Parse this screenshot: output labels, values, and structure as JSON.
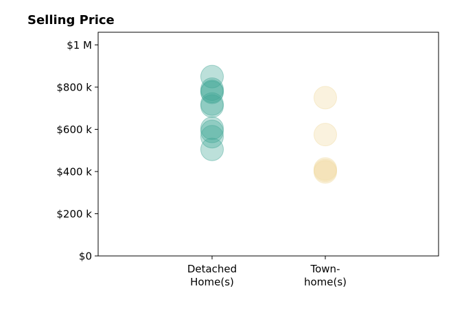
{
  "chart_data": {
    "type": "scatter",
    "title": "Selling Price",
    "xlabel": "",
    "ylabel": "",
    "categories": [
      [
        "Detached",
        "Home(s)"
      ],
      [
        "Town-",
        "home(s)"
      ]
    ],
    "ylim": [
      0,
      1060000
    ],
    "yticks": [
      0,
      200000,
      400000,
      600000,
      800000,
      1000000
    ],
    "ytick_labels": [
      "$0",
      "$200 k",
      "$400 k",
      "$600 k",
      "$800 k",
      "$1 M"
    ],
    "grid": false,
    "series": [
      {
        "category_index": 0,
        "color": "#40a595",
        "values": [
          850000,
          790000,
          780000,
          775000,
          720000,
          710000,
          605000,
          590000,
          565000,
          505000
        ]
      },
      {
        "category_index": 1,
        "color": "#f0d9a0",
        "values": [
          750000,
          575000,
          412000,
          405000,
          398000
        ]
      }
    ]
  }
}
